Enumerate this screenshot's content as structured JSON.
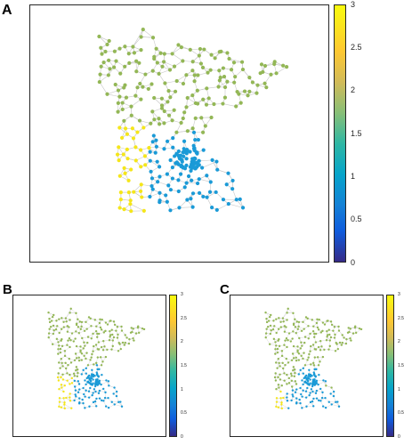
{
  "panels": [
    {
      "label": "A",
      "assignment": "A"
    },
    {
      "label": "B",
      "assignment": "B"
    },
    {
      "label": "C",
      "assignment": "C"
    }
  ],
  "colorbar": {
    "min": 0,
    "max": 3,
    "ticks": [
      "0",
      "0.5",
      "1",
      "1.5",
      "2",
      "2.5",
      "3"
    ]
  },
  "clusters": [
    {
      "value": 1,
      "color": "#1a9ad7"
    },
    {
      "value": 2,
      "color": "#93b756"
    },
    {
      "value": 3,
      "color": "#f5e61a"
    }
  ],
  "edge_color": "#c8c8c8"
}
